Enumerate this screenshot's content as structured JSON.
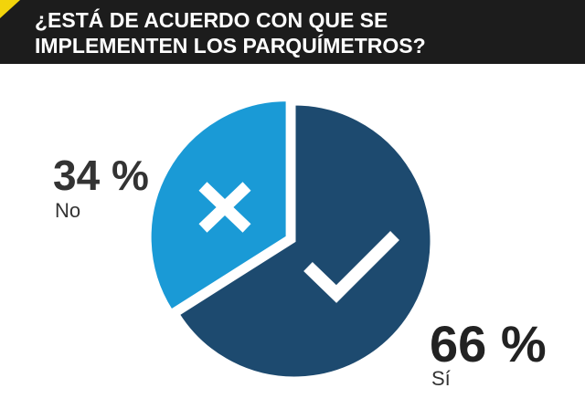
{
  "chart_data": {
    "type": "pie",
    "title": [
      "¿ESTÁ DE ACUERDO CON QUE SE",
      "IMPLEMENTEN LOS PARQUÍMETROS?"
    ],
    "categories": [
      "Sí",
      "No"
    ],
    "values": [
      66,
      34
    ],
    "value_labels": [
      "66 %",
      "34 %"
    ],
    "colors": [
      "#1d4a6f",
      "#1a9ad6"
    ]
  }
}
